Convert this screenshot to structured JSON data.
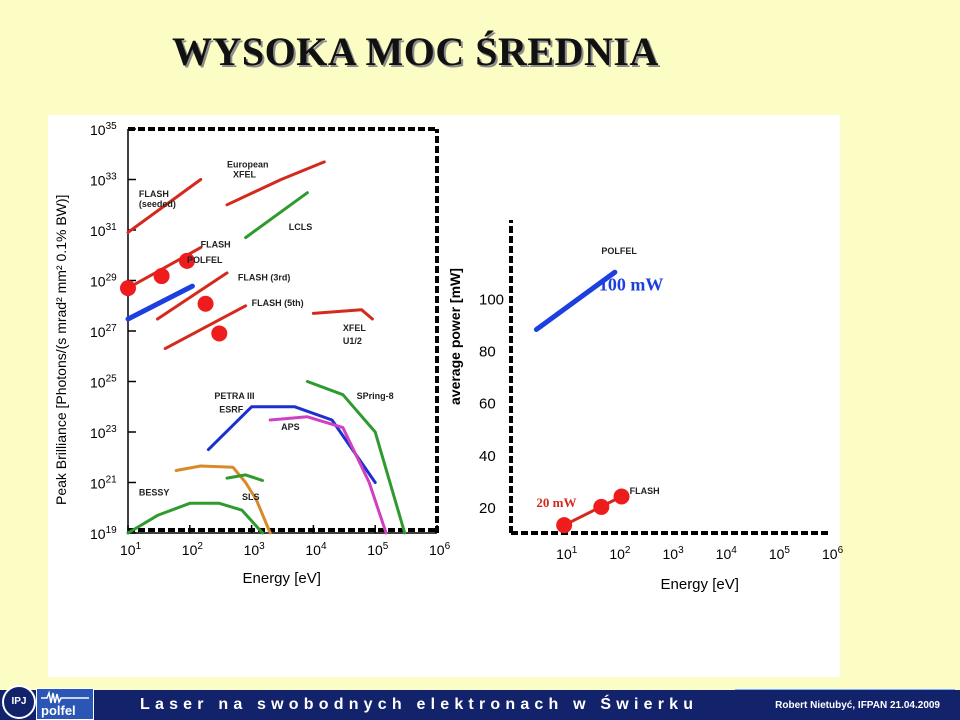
{
  "slide": {
    "title": "WYSOKA MOC ŚREDNIA",
    "footer_text": "Laser na swobodnych elektronach w Świerku",
    "footer_credit": "Robert Nietubyć, IFPAN 21.04.2009",
    "logos": [
      "IPJ",
      "polfel"
    ]
  },
  "chart_data": [
    {
      "type": "line",
      "xlabel": "Energy  [eV]",
      "ylabel": "Peak Brilliance  [Photons/(s mrad² mm² 0.1% BW)]",
      "x_scale": "log",
      "y_scale": "log",
      "xlim": [
        10,
        1000000
      ],
      "ylim": [
        1e+19,
        1e+35
      ],
      "x_ticks": [
        {
          "b": "10",
          "e": "1"
        },
        {
          "b": "10",
          "e": "2"
        },
        {
          "b": "10",
          "e": "3"
        },
        {
          "b": "10",
          "e": "4"
        },
        {
          "b": "10",
          "e": "5"
        },
        {
          "b": "10",
          "e": "6"
        }
      ],
      "y_ticks": [
        {
          "b": "10",
          "e": "19"
        },
        {
          "b": "10",
          "e": "21"
        },
        {
          "b": "10",
          "e": "23"
        },
        {
          "b": "10",
          "e": "25"
        },
        {
          "b": "10",
          "e": "27"
        },
        {
          "b": "10",
          "e": "29"
        },
        {
          "b": "10",
          "e": "31"
        },
        {
          "b": "10",
          "e": "33"
        },
        {
          "b": "10",
          "e": "35"
        }
      ],
      "series": [
        {
          "name": "FLASH (seeded)",
          "color": "#d42a1e",
          "points": [
            [
              10,
              8e+30
            ],
            [
              150,
              1e+33
            ]
          ]
        },
        {
          "name": "European XFEL",
          "color": "#d42a1e",
          "points": [
            [
              400,
              1e+32
            ],
            [
              3000,
              1e+33
            ],
            [
              15000,
              5e+33
            ]
          ]
        },
        {
          "name": "LCLS",
          "color": "#2f9b2f",
          "points": [
            [
              800,
              5e+30
            ],
            [
              8000,
              3e+32
            ]
          ]
        },
        {
          "name": "FLASH",
          "color": "#d42a1e",
          "points": [
            [
              10,
              5e+28
            ],
            [
              150,
              2e+30
            ]
          ]
        },
        {
          "name": "POLFEL",
          "color": "#1c3fe0",
          "points": [
            [
              10,
              3e+27
            ],
            [
              110,
              6e+28
            ]
          ]
        },
        {
          "name": "FLASH (3rd)",
          "color": "#d42a1e",
          "points": [
            [
              30,
              3e+27
            ],
            [
              400,
              2e+29
            ]
          ]
        },
        {
          "name": "FLASH (5th)",
          "color": "#d42a1e",
          "points": [
            [
              40,
              2e+26
            ],
            [
              800,
              1e+28
            ]
          ]
        },
        {
          "name": "XFEL U1/2",
          "color": "#d42a1e",
          "points": [
            [
              10000,
              5e+27
            ],
            [
              60000,
              7e+27
            ],
            [
              90000,
              3e+27
            ]
          ]
        },
        {
          "name": "BESSY",
          "color": "#2f9b2f",
          "points": [
            [
              10,
              1e+19
            ],
            [
              30,
              5e+19
            ],
            [
              100,
              1.5e+20
            ],
            [
              300,
              1.5e+20
            ],
            [
              700,
              8e+19
            ],
            [
              1500,
              1e+19
            ]
          ]
        },
        {
          "name": "SLS",
          "color": "#d88a2a",
          "points": [
            [
              60,
              3e+21
            ],
            [
              150,
              4.5e+21
            ],
            [
              500,
              4e+21
            ],
            [
              800,
              1e+21
            ],
            [
              1200,
              2e+20
            ],
            [
              2000,
              1e+19
            ]
          ]
        },
        {
          "name": "PETRA III",
          "color": "#2f9b2f",
          "points": [
            [
              400,
              1.5e+21
            ],
            [
              800,
              2e+21
            ],
            [
              1500,
              1.2e+21
            ]
          ]
        },
        {
          "name": "ESRF",
          "color": "#1c2fcf",
          "points": [
            [
              200,
              2e+22
            ],
            [
              1000,
              1e+24
            ],
            [
              5000,
              1e+24
            ],
            [
              20000,
              3e+23
            ],
            [
              100000,
              1e+21
            ]
          ]
        },
        {
          "name": "APS",
          "color": "#d040c0",
          "points": [
            [
              2000,
              3e+23
            ],
            [
              8000,
              4e+23
            ],
            [
              30000,
              1.5e+23
            ],
            [
              80000,
              1e+21
            ],
            [
              150000,
              1e+19
            ]
          ]
        },
        {
          "name": "SPring-8",
          "color": "#2f9b2f",
          "points": [
            [
              8000,
              1e+25
            ],
            [
              30000,
              3e+24
            ],
            [
              100000,
              1e+23
            ],
            [
              300000,
              1e+19
            ]
          ]
        }
      ],
      "markers": [
        {
          "x": 10,
          "y": 5e+28
        },
        {
          "x": 35,
          "y": 1.5e+29
        },
        {
          "x": 90,
          "y": 6e+29
        },
        {
          "x": 180,
          "y": 1.2e+28
        },
        {
          "x": 300,
          "y": 8e+26
        }
      ],
      "annotations": [
        {
          "text": "FLASH",
          "x": 15,
          "y": 2e+32
        },
        {
          "text": "(seeded)",
          "x": 15,
          "y": 8e+31
        },
        {
          "text": "European",
          "x": 400,
          "y": 3e+33
        },
        {
          "text": "XFEL",
          "x": 500,
          "y": 1.2e+33
        },
        {
          "text": "LCLS",
          "x": 4000,
          "y": 1e+31
        },
        {
          "text": "FLASH",
          "x": 150,
          "y": 2e+30
        },
        {
          "text": "POLFEL",
          "x": 90,
          "y": 5e+29
        },
        {
          "text": "FLASH (3rd)",
          "x": 600,
          "y": 1e+29
        },
        {
          "text": "FLASH (5th)",
          "x": 1000,
          "y": 1e+28
        },
        {
          "text": "XFEL",
          "x": 30000,
          "y": 1e+27
        },
        {
          "text": "U1/2",
          "x": 30000,
          "y": 3e+26
        },
        {
          "text": "PETRA III",
          "x": 250,
          "y": 2e+24
        },
        {
          "text": "ESRF",
          "x": 300,
          "y": 6e+23
        },
        {
          "text": "SPring-8",
          "x": 50000,
          "y": 2e+24
        },
        {
          "text": "APS",
          "x": 3000,
          "y": 1.2e+23
        },
        {
          "text": "BESSY",
          "x": 15,
          "y": 3e+20
        },
        {
          "text": "SLS",
          "x": 700,
          "y": 2e+20
        }
      ]
    },
    {
      "type": "line",
      "xlabel": "Energy  [eV]",
      "ylabel": "average power [mW]",
      "x_scale": "log",
      "xlim": [
        1,
        1000000
      ],
      "ylim": [
        10,
        130
      ],
      "x_ticks": [
        {
          "b": "10",
          "e": "1"
        },
        {
          "b": "10",
          "e": "2"
        },
        {
          "b": "10",
          "e": "3"
        },
        {
          "b": "10",
          "e": "4"
        },
        {
          "b": "10",
          "e": "5"
        },
        {
          "b": "10",
          "e": "6"
        }
      ],
      "y_ticks": [
        "20",
        "40",
        "60",
        "80",
        "100"
      ],
      "series": [
        {
          "name": "POLFEL",
          "color": "#1c3fe0",
          "points": [
            [
              3,
              88
            ],
            [
              90,
              110
            ]
          ]
        },
        {
          "name": "FLASH",
          "color": "#d42a1e",
          "points": [
            [
              10,
              13
            ],
            [
              150,
              25
            ]
          ]
        }
      ],
      "markers": [
        {
          "x": 10,
          "y": 13
        },
        {
          "x": 50,
          "y": 20
        },
        {
          "x": 120,
          "y": 24
        }
      ],
      "annotations": [
        {
          "text": "POLFEL",
          "x": 50,
          "y": 117
        },
        {
          "text": "100 mW",
          "x": 45,
          "y": 103
        },
        {
          "text": "20 mW",
          "x": 3,
          "y": 20
        },
        {
          "text": "FLASH",
          "x": 170,
          "y": 25
        }
      ]
    }
  ]
}
